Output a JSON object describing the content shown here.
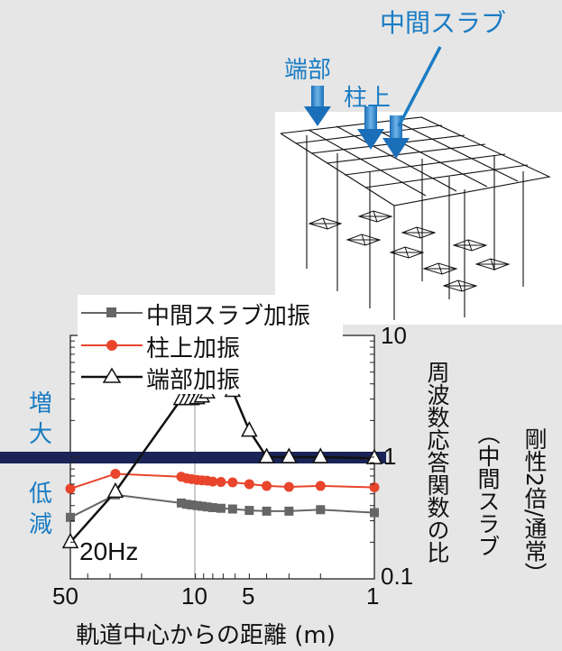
{
  "chart_data": {
    "type": "line",
    "xscale": "log",
    "yscale": "log",
    "x_reversed": true,
    "xlim": [
      50,
      1
    ],
    "ylim": [
      0.1,
      10
    ],
    "xlabel": "軌道中心からの距離 (m)",
    "ylabel": [
      "周波数応答関数の比",
      "（中間スラブ",
      "剛性2倍/通常）"
    ],
    "x_ticks": [
      "50",
      "10",
      "5",
      "1"
    ],
    "y_ticks": [
      "10",
      "1",
      "0.1"
    ],
    "annotation_freq": "20Hz",
    "band_labels": {
      "increase": [
        "増",
        "大"
      ],
      "decrease": [
        "低",
        "減"
      ]
    },
    "inset_labels": {
      "slab": "中間スラブ",
      "end": "端部",
      "col": "柱上"
    },
    "series": [
      {
        "name": "中間スラブ加振",
        "marker": "square",
        "color": "#666666",
        "x": [
          50,
          28,
          12,
          11.2,
          10.5,
          9.8,
          9.2,
          8.6,
          8.0,
          7.2,
          6.2,
          5.0,
          4.0,
          3.0,
          2.0,
          1.0
        ],
        "y": [
          0.32,
          0.49,
          0.42,
          0.41,
          0.405,
          0.4,
          0.395,
          0.39,
          0.385,
          0.38,
          0.375,
          0.365,
          0.36,
          0.36,
          0.37,
          0.35
        ]
      },
      {
        "name": "柱上加振",
        "marker": "circle",
        "color": "#e8452c",
        "x": [
          50,
          28,
          12,
          11.2,
          10.5,
          9.8,
          9.2,
          8.6,
          8.0,
          7.2,
          6.2,
          5.0,
          4.0,
          3.0,
          2.0,
          1.0
        ],
        "y": [
          0.55,
          0.73,
          0.69,
          0.67,
          0.66,
          0.65,
          0.645,
          0.64,
          0.63,
          0.625,
          0.62,
          0.6,
          0.58,
          0.57,
          0.58,
          0.565
        ]
      },
      {
        "name": "端部加振",
        "marker": "triangle",
        "color": "#111111",
        "x": [
          50,
          28,
          12,
          11.2,
          10.5,
          9.8,
          9.2,
          8.6,
          8.0,
          7.2,
          6.2,
          5.0,
          4.0,
          3.0,
          2.0,
          1.0
        ],
        "y": [
          0.2,
          0.52,
          3.0,
          3.0,
          3.0,
          3.05,
          3.15,
          3.4,
          3.8,
          4.1,
          3.5,
          1.65,
          1.0,
          1.0,
          1.0,
          0.98
        ]
      }
    ]
  }
}
